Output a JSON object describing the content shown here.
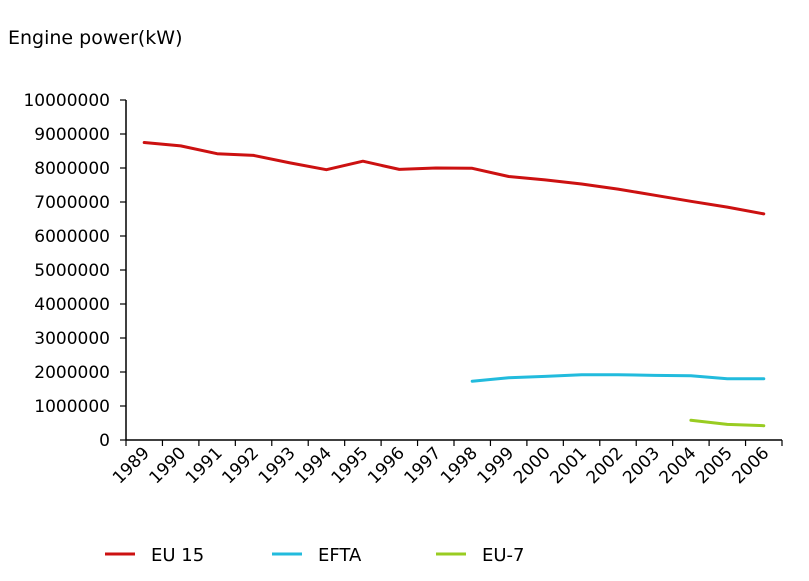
{
  "chart_data": {
    "type": "line",
    "ylabel": "Engine power(kW)",
    "xlabel": "",
    "ylim": [
      0,
      10000000
    ],
    "yticks": [
      "10000000",
      "9000000",
      "8000000",
      "7000000",
      "6000000",
      "5000000",
      "4000000",
      "3000000",
      "2000000",
      "1000000",
      "0"
    ],
    "categories": [
      "1989",
      "1990",
      "1991",
      "1992",
      "1993",
      "1994",
      "1995",
      "1996",
      "1997",
      "1998",
      "1999",
      "2000",
      "2001",
      "2002",
      "2003",
      "2004",
      "2005",
      "2006"
    ],
    "series": [
      {
        "name": "EU 15",
        "color": "#cc1111",
        "values": [
          8750000,
          8650000,
          8420000,
          8370000,
          8150000,
          7950000,
          8200000,
          7960000,
          8000000,
          7990000,
          7750000,
          7650000,
          7530000,
          7380000,
          7200000,
          7020000,
          6850000,
          6650000
        ]
      },
      {
        "name": "EFTA",
        "color": "#22bbdd",
        "values": [
          null,
          null,
          null,
          null,
          null,
          null,
          null,
          null,
          null,
          1730000,
          1830000,
          1870000,
          1920000,
          1920000,
          1900000,
          1890000,
          1800000,
          1800000
        ]
      },
      {
        "name": "EU-7",
        "color": "#99cc22",
        "values": [
          null,
          null,
          null,
          null,
          null,
          null,
          null,
          null,
          null,
          null,
          null,
          null,
          null,
          null,
          null,
          580000,
          460000,
          420000
        ]
      }
    ],
    "grid": false,
    "legend_position": "bottom"
  }
}
